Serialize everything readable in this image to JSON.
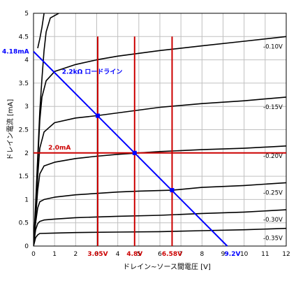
{
  "chart_data": {
    "type": "line",
    "xlabel": "ドレイン~ソース間電圧 [V]",
    "ylabel": "ドレイン電流 [mA]",
    "xlim": [
      0,
      12
    ],
    "ylim": [
      0,
      5
    ],
    "x_ticks": [
      "0",
      "1",
      "2",
      "3",
      "4",
      "5",
      "6",
      "7",
      "8",
      "9",
      "10",
      "11",
      "12"
    ],
    "y_ticks": [
      "0",
      "0.5",
      "1",
      "1.5",
      "2",
      "2.5",
      "3",
      "3.5",
      "4",
      "4.5",
      "5"
    ],
    "grid": true,
    "series": [
      {
        "name": "",
        "points": [
          [
            0,
            0
          ],
          [
            0.1,
            0.9
          ],
          [
            0.2,
            1.9
          ],
          [
            0.3,
            2.9
          ],
          [
            0.4,
            3.6
          ],
          [
            0.5,
            4.2
          ],
          [
            0.6,
            4.6
          ],
          [
            0.8,
            4.9
          ],
          [
            1.2,
            5.0
          ]
        ]
      },
      {
        "name": "",
        "points": [
          [
            0.2,
            4.25
          ],
          [
            0.3,
            4.45
          ],
          [
            0.4,
            4.7
          ],
          [
            0.5,
            5.0
          ]
        ]
      },
      {
        "name": "-0.10V",
        "points": [
          [
            0,
            0
          ],
          [
            0.1,
            0.8
          ],
          [
            0.2,
            1.8
          ],
          [
            0.3,
            2.7
          ],
          [
            0.4,
            3.2
          ],
          [
            0.6,
            3.55
          ],
          [
            1,
            3.75
          ],
          [
            2,
            3.9
          ],
          [
            3,
            4.0
          ],
          [
            4,
            4.08
          ],
          [
            6,
            4.2
          ],
          [
            8,
            4.3
          ],
          [
            10,
            4.4
          ],
          [
            12,
            4.5
          ]
        ]
      },
      {
        "name": "-0.15V",
        "points": [
          [
            0,
            0
          ],
          [
            0.1,
            0.7
          ],
          [
            0.2,
            1.5
          ],
          [
            0.3,
            2.1
          ],
          [
            0.5,
            2.45
          ],
          [
            1,
            2.65
          ],
          [
            2,
            2.75
          ],
          [
            3,
            2.8
          ],
          [
            4,
            2.86
          ],
          [
            6,
            2.98
          ],
          [
            8,
            3.06
          ],
          [
            10,
            3.12
          ],
          [
            12,
            3.2
          ]
        ]
      },
      {
        "name": "-0.20V",
        "points": [
          [
            0,
            0
          ],
          [
            0.1,
            0.6
          ],
          [
            0.2,
            1.2
          ],
          [
            0.3,
            1.55
          ],
          [
            0.5,
            1.72
          ],
          [
            1,
            1.8
          ],
          [
            2,
            1.88
          ],
          [
            3,
            1.93
          ],
          [
            4,
            1.97
          ],
          [
            5,
            2.0
          ],
          [
            6,
            2.03
          ],
          [
            8,
            2.07
          ],
          [
            10,
            2.1
          ],
          [
            12,
            2.15
          ]
        ]
      },
      {
        "name": "-0.25V",
        "points": [
          [
            0,
            0
          ],
          [
            0.1,
            0.5
          ],
          [
            0.2,
            0.82
          ],
          [
            0.3,
            0.95
          ],
          [
            0.5,
            1.0
          ],
          [
            1,
            1.05
          ],
          [
            2,
            1.1
          ],
          [
            3,
            1.13
          ],
          [
            4,
            1.16
          ],
          [
            5,
            1.18
          ],
          [
            6.58,
            1.2
          ],
          [
            8,
            1.26
          ],
          [
            10,
            1.3
          ],
          [
            12,
            1.36
          ]
        ]
      },
      {
        "name": "-0.30V",
        "points": [
          [
            0,
            0
          ],
          [
            0.1,
            0.35
          ],
          [
            0.2,
            0.48
          ],
          [
            0.3,
            0.53
          ],
          [
            0.5,
            0.56
          ],
          [
            1,
            0.58
          ],
          [
            2,
            0.61
          ],
          [
            4,
            0.64
          ],
          [
            6,
            0.66
          ],
          [
            8,
            0.7
          ],
          [
            10,
            0.73
          ],
          [
            12,
            0.78
          ]
        ]
      },
      {
        "name": "-0.35V",
        "points": [
          [
            0,
            0
          ],
          [
            0.1,
            0.18
          ],
          [
            0.2,
            0.24
          ],
          [
            0.3,
            0.27
          ],
          [
            1,
            0.28
          ],
          [
            2,
            0.29
          ],
          [
            4,
            0.3
          ],
          [
            6,
            0.31
          ],
          [
            8,
            0.33
          ],
          [
            10,
            0.35
          ],
          [
            12,
            0.38
          ]
        ]
      }
    ],
    "load_line": {
      "label": "2.2kΩ ロードライン",
      "points": [
        [
          0,
          4.18
        ],
        [
          9.2,
          0
        ]
      ],
      "color": "#0000ff"
    },
    "operating_points": [
      [
        3.05,
        2.8
      ],
      [
        4.8,
        2.0
      ],
      [
        6.58,
        1.2
      ]
    ],
    "reference_lines": {
      "color": "#cc0000",
      "vertical_x": [
        3.05,
        4.8,
        6.58
      ],
      "horizontal_y": [
        2.0
      ]
    },
    "annotations": {
      "y_intercept": "4.18mA",
      "x_intercept": "9.2V",
      "current": "2.0mA",
      "voltages": [
        "3.05V",
        "4.8V",
        "6.58V"
      ]
    },
    "colors": {
      "curves": "#000000",
      "grid": "#c0c0c0",
      "load_line": "#0000ff",
      "reference": "#cc0000"
    }
  }
}
